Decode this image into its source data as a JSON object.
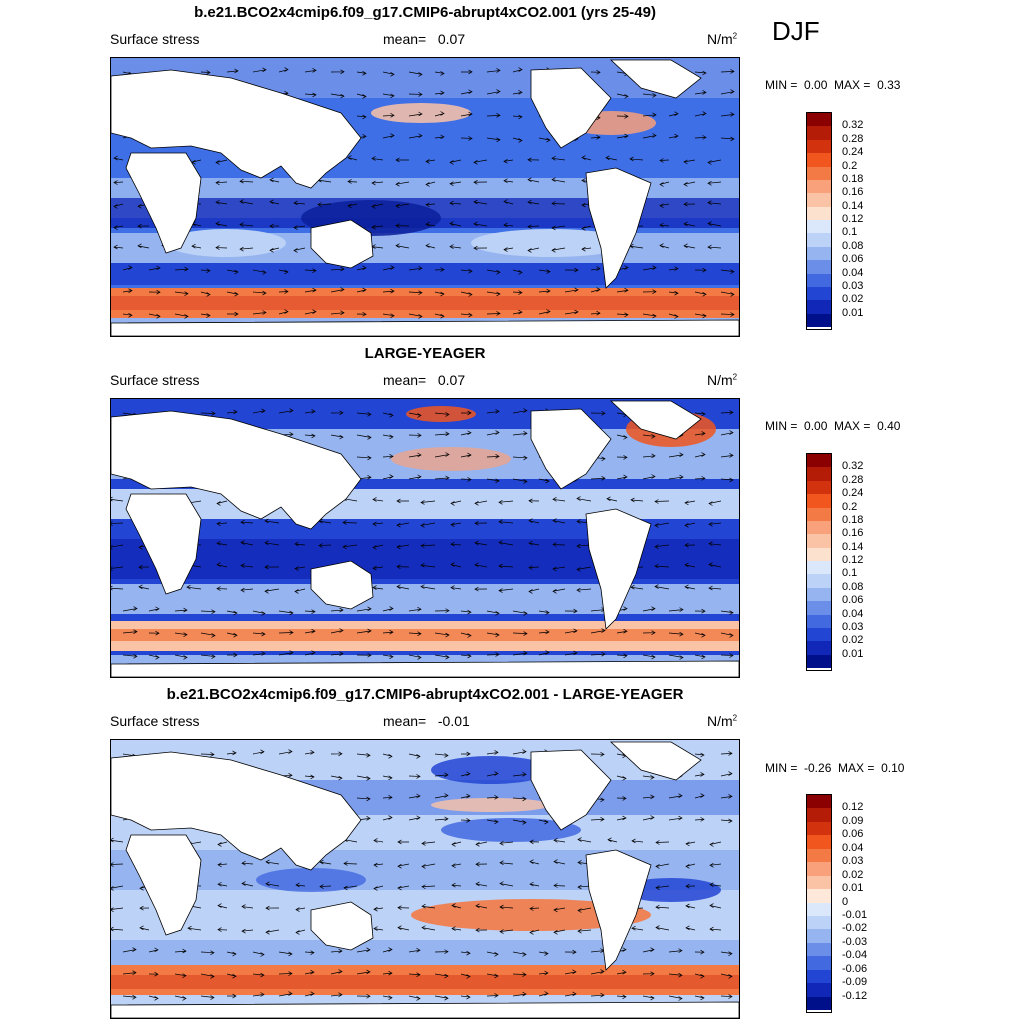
{
  "season": "DJF",
  "colors": {
    "ocean_blue_dark": "#0a2fb8",
    "ocean_blue_mid": "#3f6fe6",
    "ocean_blue_light": "#b7cdf6",
    "warm_light": "#fbd7c4",
    "warm_mid": "#f39a76",
    "warm_dark": "#d9432a",
    "land": "#ffffff"
  },
  "panels": [
    {
      "title": "b.e21.BCO2x4cmip6.f09_g17.CMIP6-abrupt4xCO2.001 (yrs 25-49)",
      "variable": "Surface stress",
      "mean_label": "mean=",
      "mean_value": "0.07",
      "units_base": "N/m",
      "units_exp": "2",
      "min_label": "MIN =",
      "min_value": "0.00",
      "max_label": "MAX =",
      "max_value": "0.33",
      "colorbar_labels": [
        "0.32",
        "0.28",
        "0.24",
        "0.2",
        "0.18",
        "0.16",
        "0.14",
        "0.12",
        "0.1",
        "0.08",
        "0.06",
        "0.04",
        "0.03",
        "0.02",
        "0.01"
      ],
      "colorbar_colors": [
        "#8b0000",
        "#b51c08",
        "#d3320f",
        "#f0561e",
        "#f37a45",
        "#f8a17a",
        "#fbc3a6",
        "#fde1cf",
        "#dbe8fb",
        "#bcd2f7",
        "#96b5f0",
        "#6b8ee8",
        "#4269e0",
        "#2345d3",
        "#1027b8",
        "#000f8a"
      ]
    },
    {
      "title": "LARGE-YEAGER",
      "variable": "Surface stress",
      "mean_label": "mean=",
      "mean_value": "0.07",
      "units_base": "N/m",
      "units_exp": "2",
      "min_label": "MIN =",
      "min_value": "0.00",
      "max_label": "MAX =",
      "max_value": "0.40",
      "colorbar_labels": [
        "0.32",
        "0.28",
        "0.24",
        "0.2",
        "0.18",
        "0.16",
        "0.14",
        "0.12",
        "0.1",
        "0.08",
        "0.06",
        "0.04",
        "0.03",
        "0.02",
        "0.01"
      ],
      "colorbar_colors": [
        "#8b0000",
        "#b51c08",
        "#d3320f",
        "#f0561e",
        "#f37a45",
        "#f8a17a",
        "#fbc3a6",
        "#fde1cf",
        "#dbe8fb",
        "#bcd2f7",
        "#96b5f0",
        "#6b8ee8",
        "#4269e0",
        "#2345d3",
        "#1027b8",
        "#000f8a"
      ]
    },
    {
      "title": "b.e21.BCO2x4cmip6.f09_g17.CMIP6-abrupt4xCO2.001 - LARGE-YEAGER",
      "variable": "Surface stress",
      "mean_label": "mean=",
      "mean_value": "-0.01",
      "units_base": "N/m",
      "units_exp": "2",
      "min_label": "MIN =",
      "min_value": "-0.26",
      "max_label": "MAX =",
      "max_value": "0.10",
      "colorbar_labels": [
        "0.12",
        "0.09",
        "0.06",
        "0.04",
        "0.03",
        "0.02",
        "0.01",
        "0",
        "-0.01",
        "-0.02",
        "-0.03",
        "-0.04",
        "-0.06",
        "-0.09",
        "-0.12"
      ],
      "colorbar_colors": [
        "#8b0000",
        "#b51c08",
        "#d3320f",
        "#f0561e",
        "#f37a45",
        "#f8a17a",
        "#fbc3a6",
        "#fde8da",
        "#dbe8fb",
        "#bcd2f7",
        "#96b5f0",
        "#6b8ee8",
        "#4269e0",
        "#2345d3",
        "#1027b8",
        "#000f8a"
      ]
    }
  ]
}
